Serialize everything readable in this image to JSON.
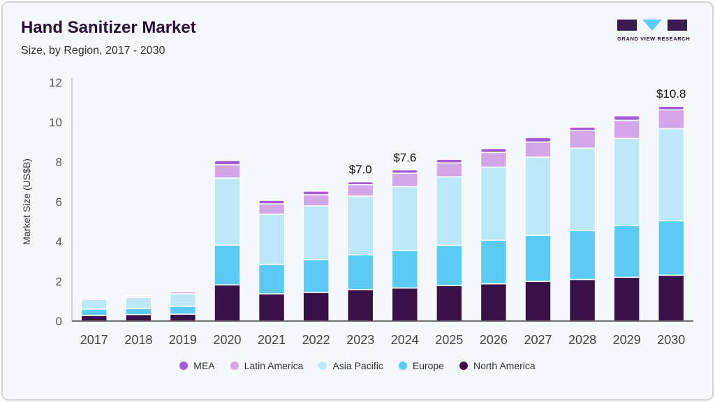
{
  "header": {
    "title": "Hand Sanitizer Market",
    "subtitle": "Size, by Region, 2017 - 2030",
    "logo_text": "GRAND VIEW RESEARCH"
  },
  "chart_data": {
    "type": "bar",
    "stacked": true,
    "title": "Hand Sanitizer Market",
    "subtitle": "Size, by Region, 2017 - 2030",
    "xlabel": "",
    "ylabel": "Market Size (US$B)",
    "ylim": [
      0,
      12
    ],
    "yticks": [
      0,
      2,
      4,
      6,
      8,
      10,
      12
    ],
    "grid": false,
    "legend_position": "bottom",
    "categories": [
      "2017",
      "2018",
      "2019",
      "2020",
      "2021",
      "2022",
      "2023",
      "2024",
      "2025",
      "2026",
      "2027",
      "2028",
      "2029",
      "2030"
    ],
    "series": [
      {
        "name": "North America",
        "color": "#371148",
        "values": [
          0.28,
          0.33,
          0.35,
          1.82,
          1.37,
          1.44,
          1.58,
          1.66,
          1.78,
          1.87,
          1.99,
          2.09,
          2.2,
          2.31
        ]
      },
      {
        "name": "Europe",
        "color": "#5bcbf5",
        "values": [
          0.32,
          0.3,
          0.39,
          2.0,
          1.47,
          1.65,
          1.75,
          1.89,
          2.03,
          2.19,
          2.32,
          2.46,
          2.6,
          2.73
        ]
      },
      {
        "name": "Asia Pacific",
        "color": "#bde8f8",
        "values": [
          0.49,
          0.55,
          0.63,
          3.37,
          2.53,
          2.7,
          2.95,
          3.21,
          3.44,
          3.68,
          3.93,
          4.14,
          4.38,
          4.63
        ]
      },
      {
        "name": "Latin America",
        "color": "#d3a6e8",
        "values": [
          0.07,
          0.07,
          0.11,
          0.67,
          0.52,
          0.56,
          0.57,
          0.67,
          0.7,
          0.74,
          0.76,
          0.88,
          0.91,
          0.95
        ]
      },
      {
        "name": "MEA",
        "color": "#a45bd6",
        "values": [
          0.03,
          0.03,
          0.03,
          0.21,
          0.18,
          0.18,
          0.15,
          0.17,
          0.18,
          0.19,
          0.23,
          0.18,
          0.23,
          0.18
        ]
      }
    ],
    "annotations": [
      {
        "category": "2023",
        "text": "$7.0"
      },
      {
        "category": "2024",
        "text": "$7.6"
      },
      {
        "category": "2030",
        "text": "$10.8"
      }
    ]
  }
}
